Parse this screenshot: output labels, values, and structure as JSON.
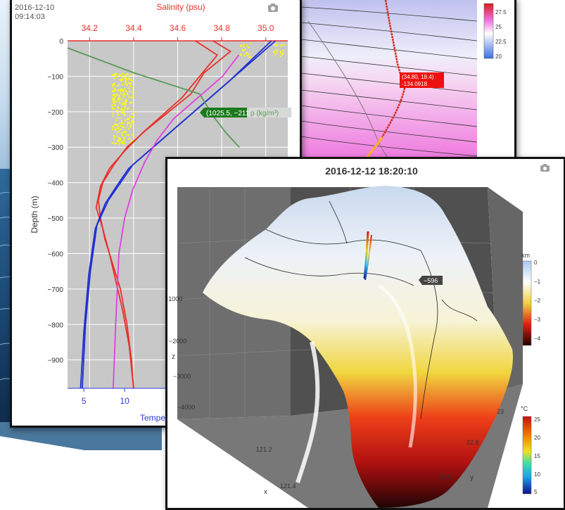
{
  "colors": {
    "salinity": "#e8302a",
    "temperature": "#1f2fd0",
    "density": "#5a9a5a",
    "oxygen": "#e040e0",
    "argo": "#ffff00",
    "axis_blue": "#2a3bd8",
    "plot_bg": "#c8c8c8"
  },
  "icons": {
    "camera": "camera-icon"
  },
  "profile_chart": {
    "date": "2016-12-10",
    "time": "09:14:03",
    "top_axis_label": "Salinity (psu)",
    "top_ticks": [
      "34.2",
      "34.4",
      "34.6",
      "34.8",
      "35.0"
    ],
    "y_axis_label": "Depth (m)",
    "y_ticks": [
      "0",
      "−100",
      "−200",
      "−300",
      "−400",
      "−500",
      "−600",
      "−700",
      "−800",
      "−900"
    ],
    "bottom_ticks": [
      "5",
      "10"
    ],
    "bottom_axis_label": "Tempe",
    "density_tooltip": "(1025.5, −211)",
    "density_label": "ρ (kg/m³)"
  },
  "section_chart": {
    "colorbar_ticks": [
      "27.5",
      "25",
      "22.5",
      "20"
    ],
    "tooltip_line1": "(34.80, 18.4)",
    "tooltip_line2": "-134.0918"
  },
  "surface_chart": {
    "title": "2016-12-12 18:20:10",
    "z_label": "z",
    "z_ticks": [
      "−1000",
      "−2000",
      "−3000",
      "−4000"
    ],
    "x_label": "x",
    "x_ticks": [
      "121.2",
      "121.4"
    ],
    "y_label": "y",
    "y_ticks": [
      "23",
      "22.8",
      "22.6"
    ],
    "depth_bar_unit": "km",
    "depth_bar_ticks": [
      "0",
      "−1",
      "−2",
      "−3",
      "−4"
    ],
    "temp_bar_unit": "°C",
    "temp_bar_ticks": [
      "25",
      "20",
      "15",
      "10",
      "5"
    ],
    "hover_label": "−596"
  },
  "chart_data": [
    {
      "type": "line",
      "title": "",
      "xlabel": "Salinity (psu)",
      "ylabel": "Depth (m)",
      "xlim": [
        34.1,
        35.1
      ],
      "ylim": [
        -980,
        0
      ],
      "x_tick_values": [
        34.2,
        34.4,
        34.6,
        34.8,
        35.0
      ],
      "y_tick_values": [
        0,
        -100,
        -200,
        -300,
        -400,
        -500,
        -600,
        -700,
        -800,
        -900
      ],
      "secondary_x": {
        "label": "Tempe",
        "tick_values": [
          5,
          10
        ],
        "lim": [
          3,
          30
        ]
      },
      "series": [
        {
          "name": "",
          "axis": "salinity",
          "color": "#e8302a",
          "x": [
            34.76,
            34.84,
            34.72,
            34.66,
            34.56,
            34.46,
            34.37,
            34.31,
            34.26,
            34.24,
            34.25,
            34.27,
            34.3,
            34.34,
            34.37,
            34.39,
            34.4
          ],
          "y": [
            0,
            -30,
            -90,
            -150,
            -200,
            -250,
            -300,
            -350,
            -400,
            -450,
            -500,
            -560,
            -620,
            -700,
            -800,
            -900,
            -980
          ]
        },
        {
          "name": "",
          "axis": "salinity",
          "color": "#e8302a",
          "x": [
            34.68,
            34.78,
            34.7,
            34.62,
            34.53,
            34.44,
            34.36,
            34.29,
            34.25,
            34.23,
            34.26,
            34.29,
            34.32,
            34.35,
            34.38,
            34.4
          ],
          "y": [
            0,
            -40,
            -100,
            -160,
            -210,
            -260,
            -310,
            -360,
            -410,
            -470,
            -530,
            -600,
            -680,
            -760,
            -860,
            -980
          ]
        },
        {
          "name": "",
          "axis": "temperature",
          "color": "#1f2fd0",
          "x": [
            28.5,
            26.0,
            23.5,
            21.0,
            18.5,
            16.0,
            13.5,
            11.0,
            9.5,
            8.0,
            6.6,
            5.8,
            5.2,
            4.8
          ],
          "y": [
            0,
            -50,
            -100,
            -150,
            -200,
            -250,
            -300,
            -350,
            -400,
            -450,
            -520,
            -650,
            -800,
            -980
          ]
        },
        {
          "name": "",
          "axis": "temperature",
          "color": "#1f2fd0",
          "x": [
            28.0,
            25.5,
            23.0,
            20.5,
            18.0,
            15.5,
            13.0,
            10.5,
            9.0,
            7.6,
            6.4,
            5.6,
            5.0,
            4.6
          ],
          "y": [
            0,
            -55,
            -110,
            -160,
            -210,
            -260,
            -310,
            -360,
            -410,
            -460,
            -530,
            -660,
            -820,
            -980
          ]
        },
        {
          "name": "ρ (kg/m³)",
          "axis": "salinity",
          "color": "#5a9a5a",
          "x": [
            34.1,
            34.4,
            34.7,
            34.76,
            34.82,
            34.88
          ],
          "y": [
            -20,
            -90,
            -150,
            -211,
            -260,
            -300
          ]
        },
        {
          "name": "",
          "axis": "temperature",
          "color": "#e040e0",
          "x": [
            24.0,
            22.0,
            19.0,
            16.0,
            14.0,
            12.5,
            11.0,
            10.0,
            9.3,
            8.9,
            8.6
          ],
          "y": [
            -40,
            -100,
            -160,
            -220,
            -280,
            -340,
            -420,
            -500,
            -600,
            -800,
            -980
          ]
        }
      ],
      "annotations": [
        {
          "text": "(1025.5, −211)",
          "x": 34.78,
          "y": -211
        }
      ]
    },
    {
      "type": "heatmap",
      "title": "",
      "colorbar_ticks": [
        27.5,
        25,
        22.5,
        20
      ],
      "annotations": [
        {
          "text": "(34.80, 18.4) -134.0918"
        }
      ]
    },
    {
      "type": "heatmap",
      "subtype": "surface",
      "title": "2016-12-12 18:20:10",
      "xlabel": "x",
      "ylabel": "y",
      "zlabel": "z",
      "x_ticks": [
        121.2,
        121.4
      ],
      "y_ticks": [
        22.6,
        22.8,
        23
      ],
      "z_ticks": [
        -1000,
        -2000,
        -3000,
        -4000
      ],
      "depth_colorbar": {
        "unit": "km",
        "ticks": [
          0,
          -1,
          -2,
          -3,
          -4
        ]
      },
      "temperature_colorbar": {
        "unit": "°C",
        "ticks": [
          25,
          20,
          15,
          10,
          5
        ]
      },
      "annotations": [
        {
          "text": "−596"
        }
      ]
    }
  ]
}
